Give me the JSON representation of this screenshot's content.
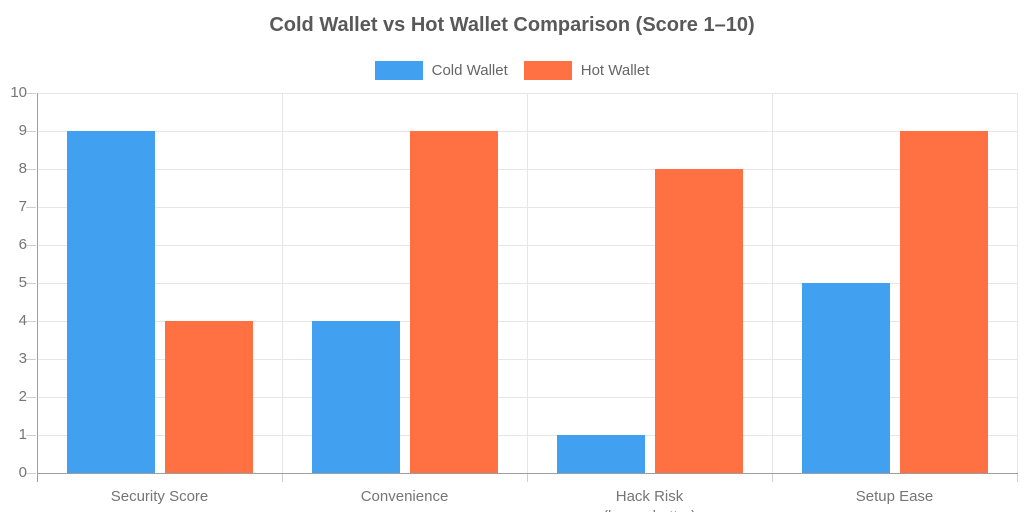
{
  "chart_data": {
    "type": "bar",
    "title": "Cold Wallet vs Hot Wallet Comparison (Score 1–10)",
    "categories": [
      "Security Score",
      "Convenience",
      "Hack Risk\n(lower=better)",
      "Setup Ease"
    ],
    "series": [
      {
        "name": "Cold Wallet",
        "color": "#42A0F0",
        "values": [
          9,
          4,
          1,
          5
        ]
      },
      {
        "name": "Hot Wallet",
        "color": "#FF7043",
        "values": [
          4,
          9,
          8,
          9
        ]
      }
    ],
    "xlabel": "",
    "ylabel": "",
    "ylim": [
      0,
      10
    ],
    "yticks": [
      0,
      1,
      2,
      3,
      4,
      5,
      6,
      7,
      8,
      9,
      10
    ],
    "grid": true,
    "legend_position": "top"
  },
  "colors": {
    "background": "#ffffff",
    "title_text": "#595959",
    "legend_text": "#666666",
    "tick_text": "#757575",
    "gridline": "#e6e6e6",
    "tick_mark": "#cfcfcf",
    "axis_line": "#9e9e9e",
    "cold_wallet": "#42A0F0",
    "hot_wallet": "#FF7043"
  }
}
